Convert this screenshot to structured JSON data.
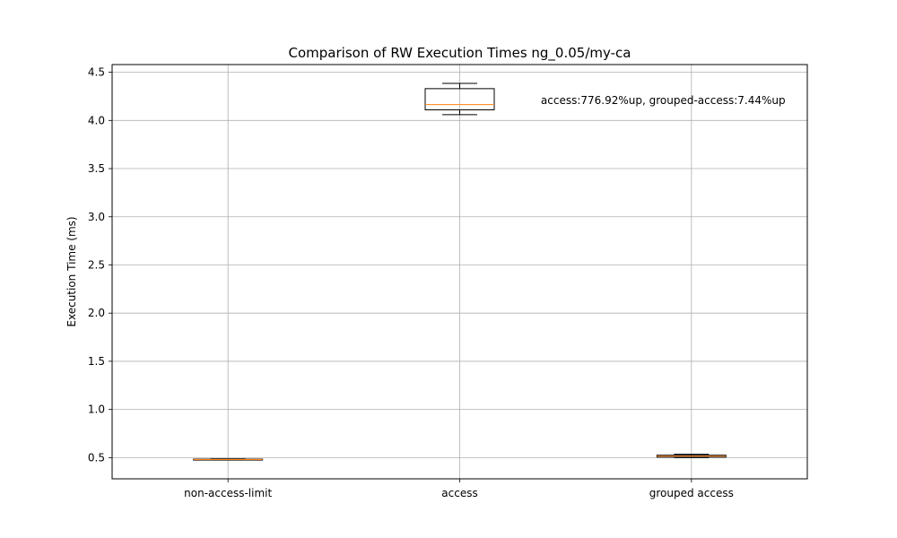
{
  "chart_data": {
    "type": "box",
    "title": "Comparison of RW Execution Times ng_0.05/my-ca",
    "xlabel": "",
    "ylabel": "Execution Time (ms)",
    "ylim": [
      0.28,
      4.58
    ],
    "yticks": [
      "0.5",
      "1.0",
      "1.5",
      "2.0",
      "2.5",
      "3.0",
      "3.5",
      "4.0",
      "4.5"
    ],
    "grid": true,
    "categories": [
      "non-access-limit",
      "access",
      "grouped access"
    ],
    "boxes": [
      {
        "category": "non-access-limit",
        "whisker_low": 0.476,
        "q1": 0.478,
        "median": 0.48,
        "q3": 0.484,
        "whisker_high": 0.487
      },
      {
        "category": "access",
        "whisker_low": 4.06,
        "q1": 4.11,
        "median": 4.165,
        "q3": 4.33,
        "whisker_high": 4.385
      },
      {
        "category": "grouped access",
        "whisker_low": 0.5,
        "q1": 0.505,
        "median": 0.515,
        "q3": 0.525,
        "whisker_high": 0.535
      }
    ],
    "annotation": {
      "text": "access:776.92%up, grouped-access:7.44%up",
      "x": 2.35,
      "y": 4.17
    },
    "colors": {
      "box": "#000000",
      "median": "#ff7f0e",
      "grid": "#b0b0b0"
    }
  }
}
